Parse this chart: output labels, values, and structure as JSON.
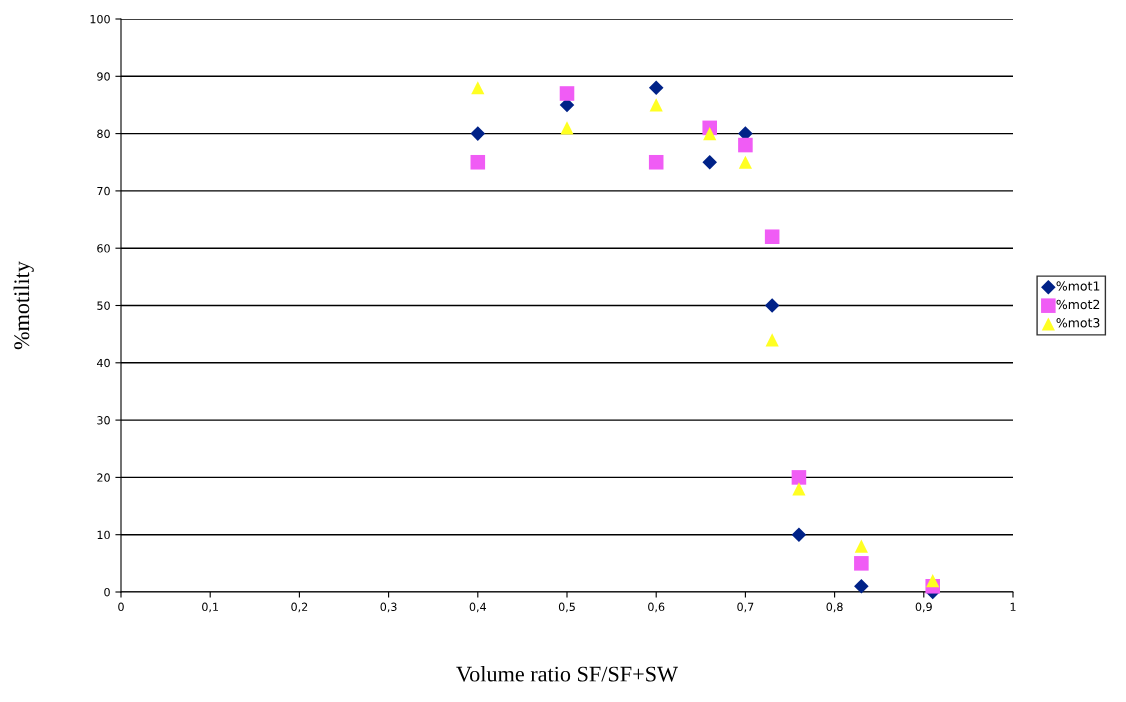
{
  "chart_data": {
    "type": "scatter",
    "xlabel": "Volume ratio SF/SF+SW",
    "ylabel": "%motility",
    "x": [
      0.4,
      0.5,
      0.6,
      0.66,
      0.7,
      0.73,
      0.76,
      0.83,
      0.91
    ],
    "series": [
      {
        "name": "%mot1",
        "color": "#002288",
        "marker": "diamond",
        "values": [
          80,
          85,
          88,
          75,
          80,
          50,
          10,
          1,
          0
        ]
      },
      {
        "name": "%mot2",
        "color": "#f05cf5",
        "marker": "square",
        "values": [
          75,
          87,
          75,
          81,
          78,
          62,
          20,
          5,
          1
        ]
      },
      {
        "name": "%mot3",
        "color": "#ffff22",
        "marker": "triangle",
        "values": [
          88,
          81,
          85,
          80,
          75,
          44,
          18,
          8,
          2
        ]
      }
    ],
    "xlim": [
      0,
      1
    ],
    "xticks": [
      0,
      {
        "value": 0.1,
        "label": "0,1"
      },
      {
        "value": 0.2,
        "label": "0,2"
      },
      {
        "value": 0.3,
        "label": "0,3"
      },
      {
        "value": 0.4,
        "label": "0,4"
      },
      {
        "value": 0.5,
        "label": "0,5"
      },
      {
        "value": 0.6,
        "label": "0,6"
      },
      {
        "value": 0.7,
        "label": "0,7"
      },
      {
        "value": 0.8,
        "label": "0,8"
      },
      {
        "value": 0.9,
        "label": "0,9"
      },
      1
    ],
    "ylim": [
      0,
      100
    ],
    "yticks": [
      0,
      10,
      20,
      30,
      40,
      50,
      60,
      70,
      80,
      90,
      100
    ],
    "grid": "y",
    "legend": "right"
  }
}
